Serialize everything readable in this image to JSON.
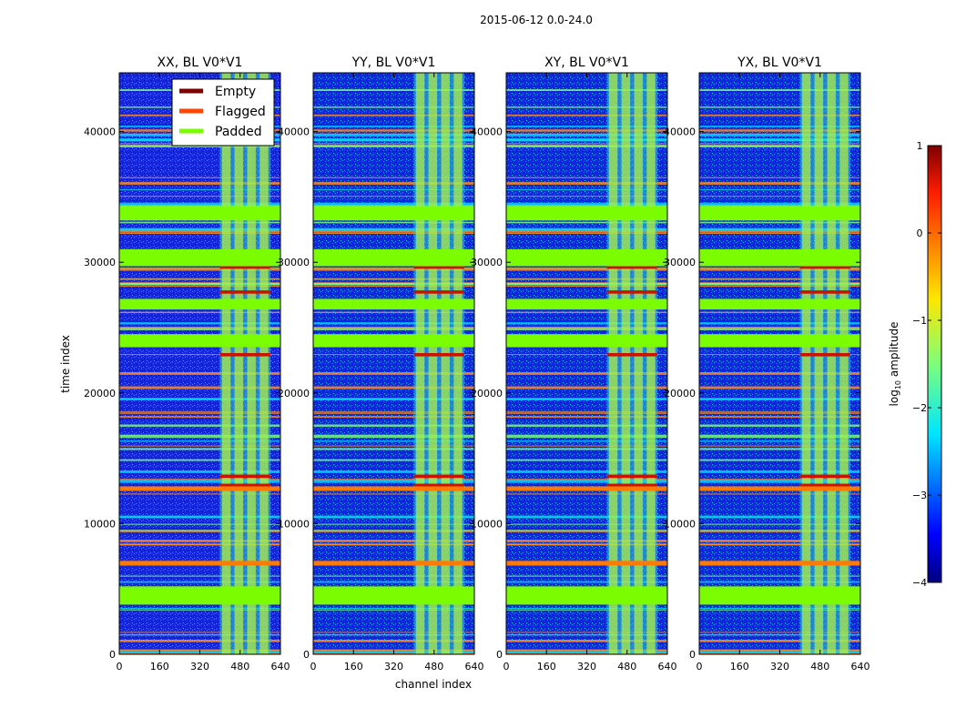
{
  "suptitle": "2015-06-12 0.0-24.0",
  "colors": {
    "background": "#ffffff",
    "empty": "#7f0000",
    "flagged": "#ff4500",
    "padded": "#7cfc00"
  },
  "chart_data": {
    "type": "heatmap",
    "colormap": "jet",
    "panels": [
      {
        "title": "XX, BL V0*V1"
      },
      {
        "title": "YY, BL V0*V1"
      },
      {
        "title": "XY, BL V0*V1"
      },
      {
        "title": "YX, BL V0*V1"
      }
    ],
    "xlabel": "channel index",
    "ylabel": "time index",
    "xlim": [
      0,
      640
    ],
    "ylim": [
      0,
      44500
    ],
    "xticks": [
      0,
      160,
      320,
      480,
      640
    ],
    "yticks": [
      0,
      10000,
      20000,
      30000,
      40000
    ],
    "xtick_labels": [
      "0",
      "160",
      "320",
      "480",
      "640"
    ],
    "ytick_labels": [
      "0",
      "10000",
      "20000",
      "30000",
      "40000"
    ],
    "colorbar": {
      "label": "log10 amplitude",
      "label_prefix": "log",
      "label_sub": "10",
      "label_suffix": " amplitude",
      "range": [
        -4,
        1
      ],
      "ticks": [
        1,
        0,
        -1,
        -2,
        -3,
        -4
      ],
      "tick_labels": [
        "1",
        "0",
        "−1",
        "−2",
        "−3",
        "−4"
      ]
    },
    "legend": {
      "placement": "upper-right of first panel",
      "entries": [
        {
          "label": "Empty",
          "color": "#7f0000"
        },
        {
          "label": "Flagged",
          "color": "#ff4500"
        },
        {
          "label": "Padded",
          "color": "#7cfc00"
        }
      ]
    },
    "padded_time_bands": [
      [
        3800,
        5200
      ],
      [
        29700,
        31000
      ],
      [
        33200,
        34300
      ],
      [
        23500,
        24500
      ],
      [
        26400,
        27200
      ]
    ],
    "high_amplitude_channel_band": [
      400,
      600
    ]
  }
}
